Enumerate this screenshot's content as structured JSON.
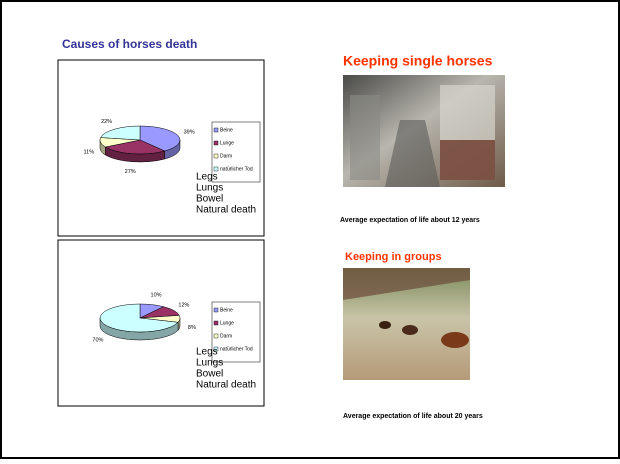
{
  "title": "Causes of horses death",
  "chart_data": [
    {
      "type": "pie",
      "categories": [
        "Beine",
        "Lunge",
        "Darm",
        "natürlicher Tod"
      ],
      "values": [
        39,
        27,
        11,
        22
      ],
      "value_labels": [
        "39%",
        "27%",
        "11%",
        "22%"
      ],
      "colors": [
        "#9999ff",
        "#993366",
        "#ffffcc",
        "#ccffff"
      ],
      "legend": "right",
      "annotations": [
        "Legs",
        "Lungs",
        "Bowel",
        "Natural death"
      ]
    },
    {
      "type": "pie",
      "categories": [
        "Beine",
        "Lunge",
        "Darm",
        "natürlicher Tod"
      ],
      "values": [
        10,
        12,
        8,
        70
      ],
      "value_labels": [
        "10%",
        "12%",
        "8%",
        "70%"
      ],
      "colors": [
        "#9999ff",
        "#993366",
        "#ffffcc",
        "#ccffff"
      ],
      "legend": "right",
      "annotations": [
        "Legs",
        "Lungs",
        "Bowel",
        "Natural death"
      ]
    }
  ],
  "sections": [
    {
      "title": "Keeping single horses",
      "caption": "Average expectation of life about 12 years"
    },
    {
      "title": "Keeping in groups",
      "caption": "Average expectation of life about 20 years"
    }
  ]
}
